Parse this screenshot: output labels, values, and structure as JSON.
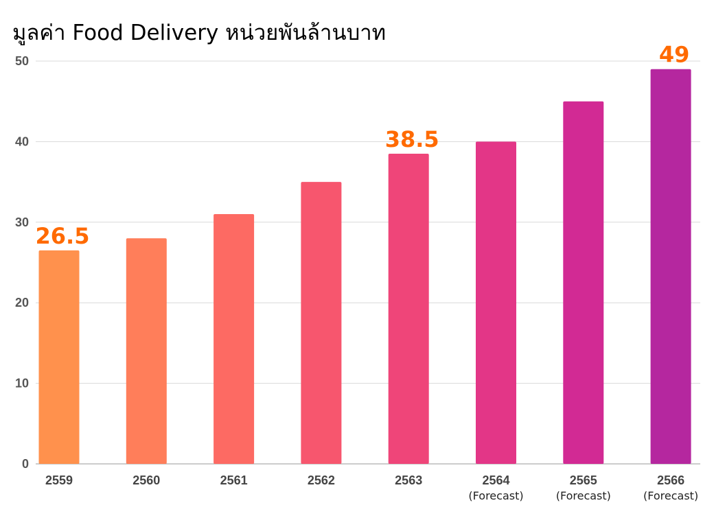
{
  "chart_data": {
    "type": "bar",
    "title": "มูลค่า Food Delivery หน่วยพันล้านบาท",
    "categories": [
      "2559",
      "2560",
      "2561",
      "2562",
      "2563",
      "2564",
      "2565",
      "2566"
    ],
    "category_sublabels": [
      "",
      "",
      "",
      "",
      "",
      "(Forecast)",
      "(Forecast)",
      "(Forecast)"
    ],
    "values": [
      26.5,
      28,
      31,
      35,
      38.5,
      40,
      45,
      49
    ],
    "data_labels": [
      "26.5",
      "",
      "",
      "",
      "38.5",
      "",
      "",
      "49"
    ],
    "colors": [
      "#FF914D",
      "#FF7E5A",
      "#FD6A63",
      "#F7566E",
      "#EF4579",
      "#E33687",
      "#D22A94",
      "#B5279F"
    ],
    "data_label_color": "#FF6A00",
    "ylim": [
      0,
      50
    ],
    "yticks": [
      0,
      10,
      20,
      30,
      40,
      50
    ],
    "xlabel": "",
    "ylabel": "",
    "grid": true,
    "legend": "none"
  }
}
